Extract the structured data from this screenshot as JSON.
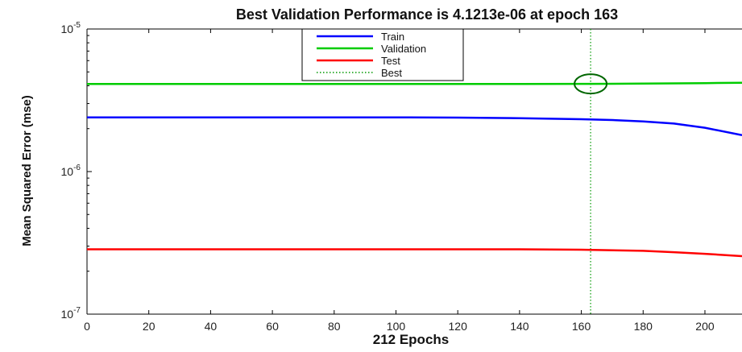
{
  "chart_data": {
    "type": "line",
    "title": "Best Validation Performance is 4.1213e-06 at epoch 163",
    "xlabel": "212 Epochs",
    "ylabel": "Mean Squared Error  (mse)",
    "xlim": [
      0,
      212
    ],
    "ylim": [
      1e-07,
      1e-05
    ],
    "yscale": "log",
    "x_ticks": [
      0,
      20,
      40,
      60,
      80,
      100,
      120,
      140,
      160,
      180,
      200
    ],
    "y_ticks": [
      {
        "value": 1e-05,
        "base": "10",
        "exp": "-5"
      },
      {
        "value": 1e-06,
        "base": "10",
        "exp": "-6"
      },
      {
        "value": 1e-07,
        "base": "10",
        "exp": "-7"
      }
    ],
    "grid": false,
    "legend_position": "top",
    "series": [
      {
        "name": "Train",
        "color": "#0000ff",
        "style": "solid",
        "x": [
          0,
          20,
          40,
          60,
          80,
          100,
          120,
          140,
          160,
          170,
          180,
          190,
          200,
          212
        ],
        "y": [
          2.4e-06,
          2.4e-06,
          2.4e-06,
          2.4e-06,
          2.4e-06,
          2.4e-06,
          2.39e-06,
          2.37e-06,
          2.33e-06,
          2.3e-06,
          2.25e-06,
          2.17e-06,
          2.03e-06,
          1.8e-06
        ]
      },
      {
        "name": "Validation",
        "color": "#00cc00",
        "style": "solid",
        "x": [
          0,
          20,
          40,
          60,
          80,
          100,
          120,
          140,
          160,
          163,
          180,
          200,
          212
        ],
        "y": [
          4.12e-06,
          4.12e-06,
          4.12e-06,
          4.12e-06,
          4.12e-06,
          4.12e-06,
          4.12e-06,
          4.12e-06,
          4.1213e-06,
          4.1213e-06,
          4.14e-06,
          4.17e-06,
          4.2e-06
        ]
      },
      {
        "name": "Test",
        "color": "#ff0000",
        "style": "solid",
        "x": [
          0,
          20,
          40,
          60,
          80,
          100,
          120,
          140,
          160,
          180,
          190,
          200,
          212
        ],
        "y": [
          2.85e-07,
          2.85e-07,
          2.85e-07,
          2.85e-07,
          2.85e-07,
          2.85e-07,
          2.85e-07,
          2.85e-07,
          2.83e-07,
          2.78e-07,
          2.72e-07,
          2.65e-07,
          2.55e-07
        ]
      }
    ],
    "best": {
      "name": "Best",
      "color": "#009900",
      "style": "dotted",
      "epoch": 163,
      "value": 4.1213e-06
    }
  }
}
